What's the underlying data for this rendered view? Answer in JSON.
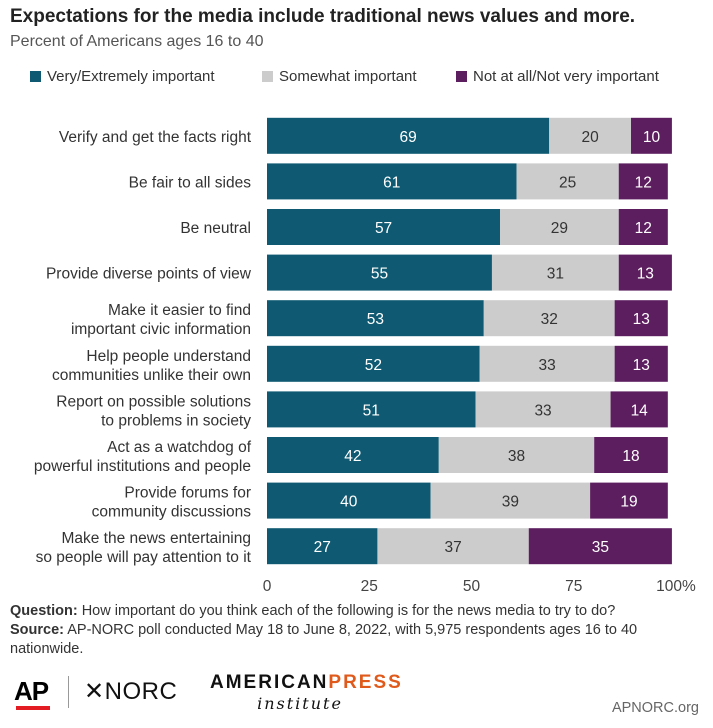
{
  "title": "Expectations for the media include traditional news values and more.",
  "subtitle": "Percent of Americans ages 16 to 40",
  "colors": {
    "very": "#0f5a72",
    "somewhat": "#cccccc",
    "not": "#5c1e5e",
    "label_dark": "#333333",
    "label_light": "#ffffff"
  },
  "chart_data": {
    "type": "bar",
    "orientation": "horizontal",
    "stacked": true,
    "categories": [
      [
        "Verify and get the facts right"
      ],
      [
        "Be fair to all sides"
      ],
      [
        "Be neutral"
      ],
      [
        "Provide diverse points of view"
      ],
      [
        "Make it easier to find",
        "important civic information"
      ],
      [
        "Help people understand",
        "communities unlike their own"
      ],
      [
        "Report on possible solutions",
        "to problems in society"
      ],
      [
        "Act as a watchdog of",
        "powerful institutions and people"
      ],
      [
        "Provide forums for",
        "community discussions"
      ],
      [
        "Make the news entertaining",
        "so people will pay attention to it"
      ]
    ],
    "series": [
      {
        "name": "Very/Extremely important",
        "color": "#0f5a72",
        "values": [
          69,
          61,
          57,
          55,
          53,
          52,
          51,
          42,
          40,
          27
        ]
      },
      {
        "name": "Somewhat important",
        "color": "#cccccc",
        "values": [
          20,
          25,
          29,
          31,
          32,
          33,
          33,
          38,
          39,
          37
        ]
      },
      {
        "name": "Not at all/Not very important",
        "color": "#5c1e5e",
        "values": [
          10,
          12,
          12,
          13,
          13,
          13,
          14,
          18,
          19,
          35
        ]
      }
    ],
    "xlim": [
      0,
      100
    ],
    "xticks": [
      "0",
      "25",
      "50",
      "75",
      "100%"
    ],
    "legend": "top-left",
    "grid": false
  },
  "notes": {
    "question_label": "Question:",
    "question_text": " How important do you think each of the following is for the news media to try to do?",
    "source_label": "Source:",
    "source_text": " AP-NORC poll conducted May 18 to June 8, 2022, with 5,975 respondents ages 16 to 40 nationwide."
  },
  "logos": {
    "ap": "AP",
    "norc": "✕NORC",
    "api_top_left": "AMERICAN",
    "api_top_right": "PRESS",
    "api_bottom": "institute",
    "apnorc": "APNORC.org"
  }
}
